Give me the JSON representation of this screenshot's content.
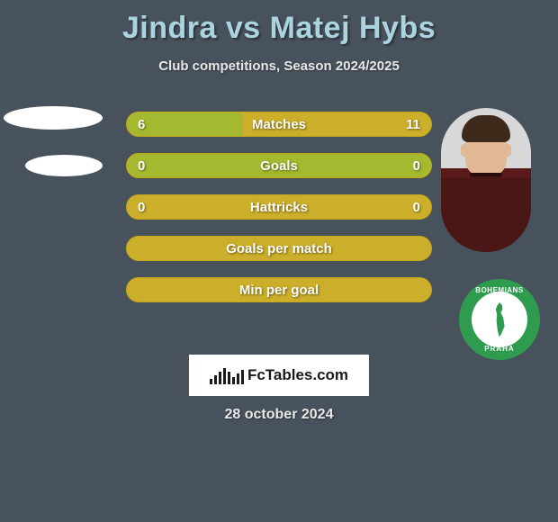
{
  "title": "Jindra vs Matej Hybs",
  "subtitle": "Club competitions, Season 2024/2025",
  "date": "28 october 2024",
  "brand": "FcTables.com",
  "colors": {
    "background": "#48525c",
    "title": "#abd4e0",
    "text": "#e8e8e8",
    "bar_base": "#cbae29",
    "bar_fill": "#a4b92f",
    "badge_outer": "#2e9b4f",
    "badge_inner": "#ffffff"
  },
  "club_badge": {
    "top_text": "BOHEMIANS",
    "bottom_text": "PRAHA"
  },
  "bars": [
    {
      "label": "Matches",
      "left": "6",
      "right": "11",
      "fill_pct": 38
    },
    {
      "label": "Goals",
      "left": "0",
      "right": "0",
      "fill_pct": 100
    },
    {
      "label": "Hattricks",
      "left": "0",
      "right": "0",
      "fill_pct": 0
    },
    {
      "label": "Goals per match",
      "left": "",
      "right": "",
      "fill_pct": 0
    },
    {
      "label": "Min per goal",
      "left": "",
      "right": "",
      "fill_pct": 0
    }
  ],
  "brand_bars": [
    6,
    10,
    14,
    18,
    14,
    8,
    12,
    16
  ]
}
